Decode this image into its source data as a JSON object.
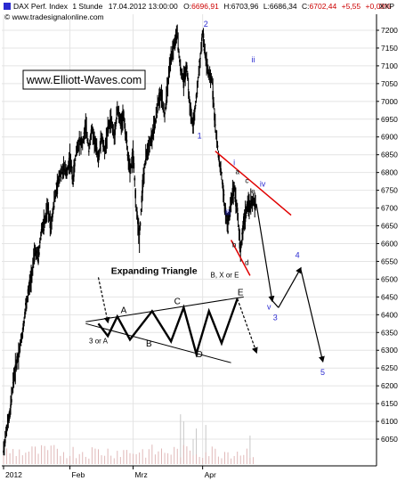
{
  "chart_data": {
    "type": "candlestick",
    "header": {
      "symbol": "DAX Perf. Index",
      "interval": "1 Stunde",
      "datetime": "17.04.2012 13:00:00",
      "open_label": "O:",
      "open": "6696,91",
      "high_label": "H:",
      "high": "6703,96",
      "low_label": "L:",
      "low": "6686,34",
      "close_label": "C:",
      "close": "6702,44",
      "change": "+5,55",
      "change_pct": "+0,08%"
    },
    "source": "© www.tradesignalonline.com",
    "watermark": "www.Elliott-Waves.com",
    "y_axis_label": "XXP",
    "ylim": [
      6000,
      7250
    ],
    "y_ticks": [
      "7200",
      "7150",
      "7100",
      "7050",
      "7000",
      "6950",
      "6900",
      "6850",
      "6800",
      "6750",
      "6700",
      "6650",
      "6600",
      "6550",
      "6500",
      "6450",
      "6400",
      "6350",
      "6300",
      "6250",
      "6200",
      "6150",
      "6100",
      "6050"
    ],
    "x_ticks": [
      "2012",
      "Feb",
      "Mrz",
      "Apr"
    ],
    "x_tick_pos": [
      0,
      21,
      41,
      63
    ],
    "xlim": [
      0,
      100
    ],
    "price_path": [
      [
        0,
        6020
      ],
      [
        1,
        6080
      ],
      [
        2,
        6120
      ],
      [
        3,
        6210
      ],
      [
        4,
        6260
      ],
      [
        5,
        6300
      ],
      [
        6,
        6350
      ],
      [
        7,
        6420
      ],
      [
        8,
        6470
      ],
      [
        9,
        6520
      ],
      [
        10,
        6580
      ],
      [
        11,
        6560
      ],
      [
        12,
        6640
      ],
      [
        13,
        6660
      ],
      [
        14,
        6700
      ],
      [
        15,
        6650
      ],
      [
        16,
        6720
      ],
      [
        17,
        6760
      ],
      [
        18,
        6800
      ],
      [
        19,
        6810
      ],
      [
        20,
        6800
      ],
      [
        21,
        6840
      ],
      [
        22,
        6780
      ],
      [
        23,
        6860
      ],
      [
        24,
        6890
      ],
      [
        25,
        6880
      ],
      [
        26,
        6930
      ],
      [
        27,
        6870
      ],
      [
        28,
        6920
      ],
      [
        29,
        6880
      ],
      [
        30,
        6840
      ],
      [
        31,
        6900
      ],
      [
        32,
        6860
      ],
      [
        33,
        6920
      ],
      [
        34,
        6950
      ],
      [
        35,
        6900
      ],
      [
        36,
        6980
      ],
      [
        37,
        6940
      ],
      [
        38,
        6960
      ],
      [
        39,
        6880
      ],
      [
        40,
        6800
      ],
      [
        41,
        6850
      ],
      [
        42,
        6700
      ],
      [
        43,
        6620
      ],
      [
        44,
        6760
      ],
      [
        45,
        6840
      ],
      [
        46,
        6880
      ],
      [
        47,
        6900
      ],
      [
        48,
        6940
      ],
      [
        49,
        7000
      ],
      [
        50,
        7020
      ],
      [
        51,
        6960
      ],
      [
        52,
        7050
      ],
      [
        53,
        7120
      ],
      [
        54,
        7160
      ],
      [
        55,
        7190
      ],
      [
        56,
        7090
      ],
      [
        57,
        7060
      ],
      [
        58,
        7100
      ],
      [
        59,
        6980
      ],
      [
        60,
        6930
      ],
      [
        61,
        7010
      ],
      [
        62,
        7100
      ],
      [
        63,
        7190
      ],
      [
        64,
        7120
      ],
      [
        65,
        7070
      ],
      [
        66,
        7060
      ],
      [
        67,
        6930
      ],
      [
        68,
        6850
      ],
      [
        69,
        6790
      ],
      [
        70,
        6700
      ],
      [
        71,
        6650
      ],
      [
        72,
        6720
      ],
      [
        73,
        6760
      ],
      [
        74,
        6690
      ],
      [
        75,
        6580
      ],
      [
        76,
        6660
      ],
      [
        77,
        6700
      ],
      [
        78,
        6710
      ],
      [
        79,
        6720
      ],
      [
        80,
        6702
      ]
    ],
    "volume_spikes": [
      [
        56,
        6120
      ],
      [
        57,
        6100
      ],
      [
        60,
        6050
      ],
      [
        61,
        6080
      ],
      [
        64,
        6090
      ],
      [
        78,
        6060
      ]
    ],
    "wave_labels": [
      {
        "text": "1",
        "x": 62,
        "y": 6895,
        "color": "blue"
      },
      {
        "text": "2",
        "x": 64,
        "y": 7210,
        "color": "blue"
      },
      {
        "text": "i",
        "x": 73,
        "y": 6820,
        "color": "blue"
      },
      {
        "text": "ii",
        "x": 79,
        "y": 7110,
        "color": "blue"
      },
      {
        "text": "iii",
        "x": 71,
        "y": 6680,
        "color": "blue"
      },
      {
        "text": "iv",
        "x": 82,
        "y": 6760,
        "color": "blue"
      },
      {
        "text": "v",
        "x": 84,
        "y": 6415,
        "color": "blue"
      },
      {
        "text": "3",
        "x": 86,
        "y": 6385,
        "color": "blue"
      },
      {
        "text": "4",
        "x": 93,
        "y": 6560,
        "color": "blue"
      },
      {
        "text": "5",
        "x": 101,
        "y": 6230,
        "color": "blue"
      },
      {
        "text": "a",
        "x": 74,
        "y": 6795,
        "color": "black"
      },
      {
        "text": "b",
        "x": 73,
        "y": 6590,
        "color": "black"
      },
      {
        "text": "c",
        "x": 77,
        "y": 6770,
        "color": "black"
      },
      {
        "text": "d",
        "x": 77,
        "y": 6540,
        "color": "black"
      },
      {
        "text": "e",
        "x": 79,
        "y": 6740,
        "color": "black"
      }
    ],
    "forecast_path": [
      [
        80,
        6712
      ],
      [
        85,
        6440
      ],
      [
        87,
        6420
      ],
      [
        94,
        6530
      ],
      [
        101,
        6270
      ]
    ],
    "trend_lines": [
      [
        [
          67,
          6860
        ],
        [
          91,
          6680
        ]
      ],
      [
        [
          72,
          6610
        ],
        [
          78,
          6510
        ]
      ]
    ],
    "annotations": [
      {
        "text": "B, X or E",
        "x": 70,
        "y": 6505
      },
      {
        "text": "3 or A",
        "x": 30,
        "y": 6320
      }
    ],
    "triangle": {
      "title": "Expanding Triangle",
      "title_x": 34,
      "title_y": 6515,
      "upper_line": [
        [
          26,
          6380
        ],
        [
          76,
          6450
        ]
      ],
      "lower_line": [
        [
          26,
          6375
        ],
        [
          72,
          6265
        ]
      ],
      "path": [
        [
          30,
          6375
        ],
        [
          33,
          6340
        ],
        [
          36,
          6395
        ],
        [
          40,
          6330
        ],
        [
          47,
          6410
        ],
        [
          53,
          6325
        ],
        [
          57,
          6420
        ],
        [
          61,
          6290
        ],
        [
          65,
          6410
        ],
        [
          69,
          6320
        ],
        [
          74,
          6445
        ]
      ],
      "lead_in": [
        [
          30,
          6505
        ],
        [
          33,
          6380
        ]
      ],
      "exit": [
        [
          74,
          6445
        ],
        [
          80,
          6295
        ]
      ],
      "letters": [
        {
          "text": "A",
          "x": 38,
          "y": 6405
        },
        {
          "text": "B",
          "x": 46,
          "y": 6310
        },
        {
          "text": "C",
          "x": 55,
          "y": 6430
        },
        {
          "text": "D",
          "x": 62,
          "y": 6280
        },
        {
          "text": "E",
          "x": 75,
          "y": 6455
        }
      ]
    }
  }
}
